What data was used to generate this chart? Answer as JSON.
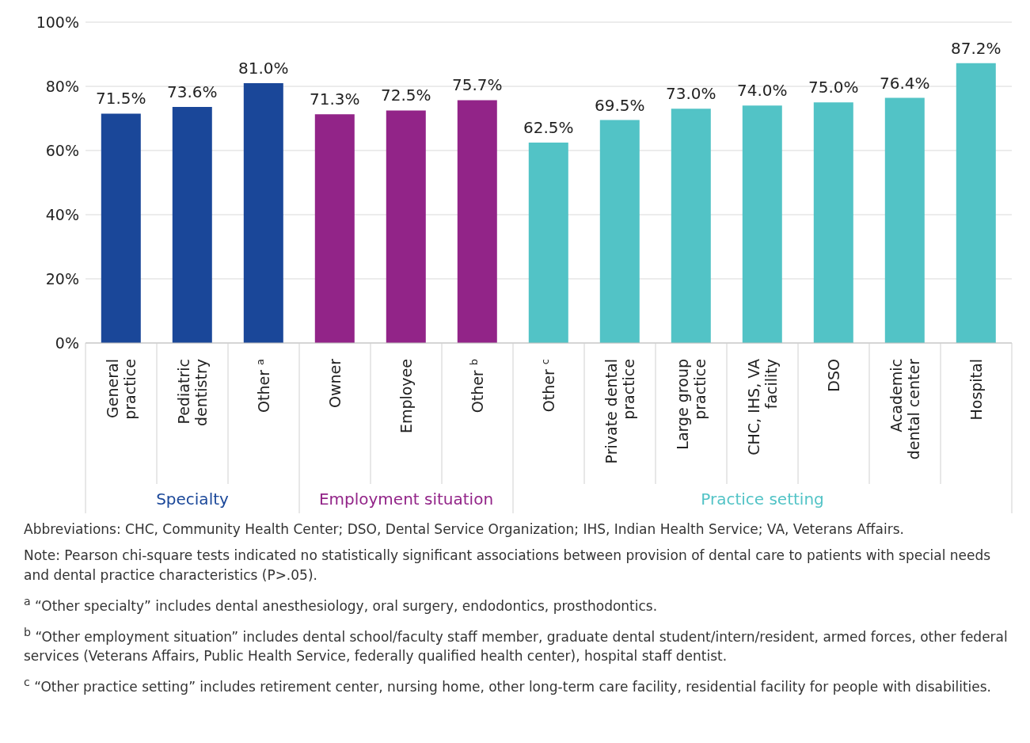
{
  "chart_data": {
    "type": "bar",
    "categories": [
      "General practice",
      "Pediatric dentistry",
      "Other $^{a}$",
      "Owner",
      "Employee",
      "Other $^{b}$",
      "Other $^{c}$",
      "Private dental practice",
      "Large group practice",
      "CHC, IHS, VA facility",
      "DSO",
      "Academic dental center",
      "Hospital"
    ],
    "series": [
      {
        "name": "Specialty",
        "color": "#1a4799",
        "values": [
          71.5,
          73.6,
          81.0,
          null,
          null,
          null,
          null,
          null,
          null,
          null,
          null,
          null,
          null
        ],
        "value_labels": [
          "71.5%",
          "73.6%",
          "81.0%",
          null,
          null,
          null,
          null,
          null,
          null,
          null,
          null,
          null,
          null
        ]
      },
      {
        "name": "Employment situation",
        "color": "#922488",
        "values": [
          null,
          null,
          null,
          71.3,
          72.5,
          75.7,
          null,
          null,
          null,
          null,
          null,
          null,
          null
        ],
        "value_labels": [
          null,
          null,
          null,
          "71.3%",
          "72.5%",
          "75.7%",
          null,
          null,
          null,
          null,
          null,
          null,
          null
        ]
      },
      {
        "name": "Practice setting",
        "color": "#52c3c6",
        "values": [
          null,
          null,
          null,
          null,
          null,
          null,
          62.5,
          69.5,
          73.0,
          74.0,
          75.0,
          76.4,
          87.2
        ],
        "value_labels": [
          null,
          null,
          null,
          null,
          null,
          null,
          "62.5%",
          "69.5%",
          "73.0%",
          "74.0%",
          "75.0%",
          "76.4%",
          "87.2%"
        ]
      }
    ],
    "stacked": true,
    "ylim": [
      0,
      100
    ],
    "yticks": [
      {
        "value": 0,
        "label": "0%"
      },
      {
        "value": 20,
        "label": "20%"
      },
      {
        "value": 40,
        "label": "40%"
      },
      {
        "value": 60,
        "label": "60%"
      },
      {
        "value": 80,
        "label": "80%"
      },
      {
        "value": 100,
        "label": "100%"
      }
    ],
    "grid": "y",
    "legend": false,
    "annotations": [
      "Abbreviations: CHC, Community Health Center; DSO, Dental Service Organization; IHS, Indian Health Service; VA, Veterans Affairs.",
      "Note: Pearson chi-square tests indicated no statistically significant associations between provision of dental care to patients with special needs and dental practice characteristics (P>.05).",
      "$^{a}$ “Other specialty” includes dental anesthesiology, oral surgery, endodontics, prosthodontics.",
      "$^{b}$ “Other employment situation” includes dental school/faculty staff member, graduate dental student/intern/resident, armed forces, other federal services (Veterans Affairs, Public Health Service, federally qualified health center), hospital staff dentist.",
      "$^{c}$ “Other practice setting” includes retirement center, nursing home, other long-term care facility, residential facility for people with disabilities."
    ]
  }
}
